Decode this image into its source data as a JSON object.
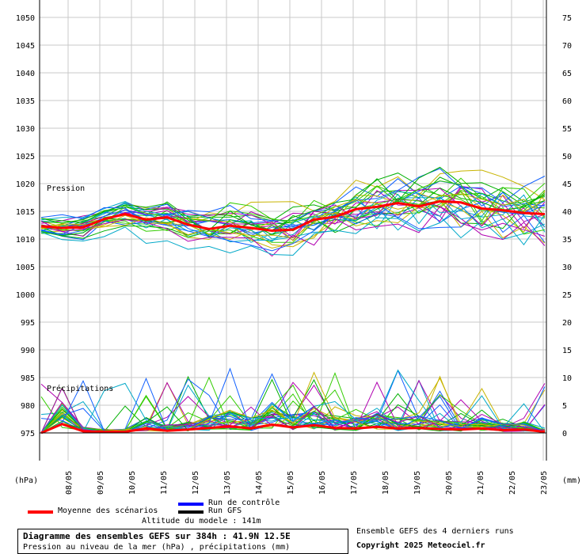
{
  "chart_data": {
    "type": "line",
    "title": "Diagramme des ensembles GEFS sur 384h : 41.9N 12.5E",
    "subtitle": "Pression au niveau de la mer (hPa) , précipitations (mm)",
    "left_axis": {
      "unit": "(hPa)",
      "range": [
        968,
        1053
      ],
      "ticks": [
        975,
        980,
        985,
        990,
        995,
        1000,
        1005,
        1010,
        1015,
        1020,
        1025,
        1030,
        1035,
        1040,
        1045,
        1050
      ]
    },
    "right_axis": {
      "unit": "(mm)",
      "ticks": [
        0,
        5,
        10,
        15,
        20,
        25,
        30,
        35,
        40,
        45,
        50,
        55,
        60,
        65,
        70,
        75
      ]
    },
    "x_labels": [
      "08/05",
      "09/05",
      "10/05",
      "11/05",
      "12/05",
      "13/05",
      "14/05",
      "15/05",
      "16/05",
      "17/05",
      "18/05",
      "19/05",
      "20/05",
      "21/05",
      "22/05",
      "23/05"
    ],
    "panel_labels": {
      "pressure": "Pression",
      "precip": "Précipitations"
    },
    "series": [
      {
        "name": "Moyenne des scénarios",
        "color": "#ff0000",
        "pressure": [
          1012.3,
          1012.0,
          1012.1,
          1013.6,
          1014.5,
          1013.5,
          1013.9,
          1012.6,
          1011.8,
          1012.4,
          1012.0,
          1011.5,
          1011.7,
          1013.5,
          1014.0,
          1015.4,
          1015.8,
          1016.5,
          1015.9,
          1016.8,
          1016.6,
          1015.5,
          1015.2,
          1014.7,
          1014.5
        ],
        "precip": [
          0.0,
          1.6,
          0.3,
          0.2,
          0.2,
          0.8,
          0.4,
          0.6,
          0.9,
          1.2,
          0.8,
          1.5,
          1.0,
          1.4,
          0.9,
          0.8,
          1.1,
          0.8,
          0.9,
          0.7,
          0.6,
          0.8,
          0.5,
          0.6,
          0.2
        ]
      }
    ],
    "legend": [
      {
        "label": "Run de contrôle",
        "color": "#0000ff"
      },
      {
        "label": "Run GFS",
        "color": "#000000"
      },
      {
        "label": "Moyenne des scénarios",
        "color": "#ff0000"
      }
    ],
    "grid": true
  },
  "footer": {
    "altitude": "Altitude du modele : 141m",
    "runs_note": "Ensemble GEFS des 4 derniers runs",
    "copyright": "Copyright 2025 Meteociel.fr"
  },
  "colors": {
    "member_palette": [
      "#00b000",
      "#33cc00",
      "#c8b400",
      "#b000b0",
      "#00a8c8",
      "#1060ff"
    ]
  }
}
